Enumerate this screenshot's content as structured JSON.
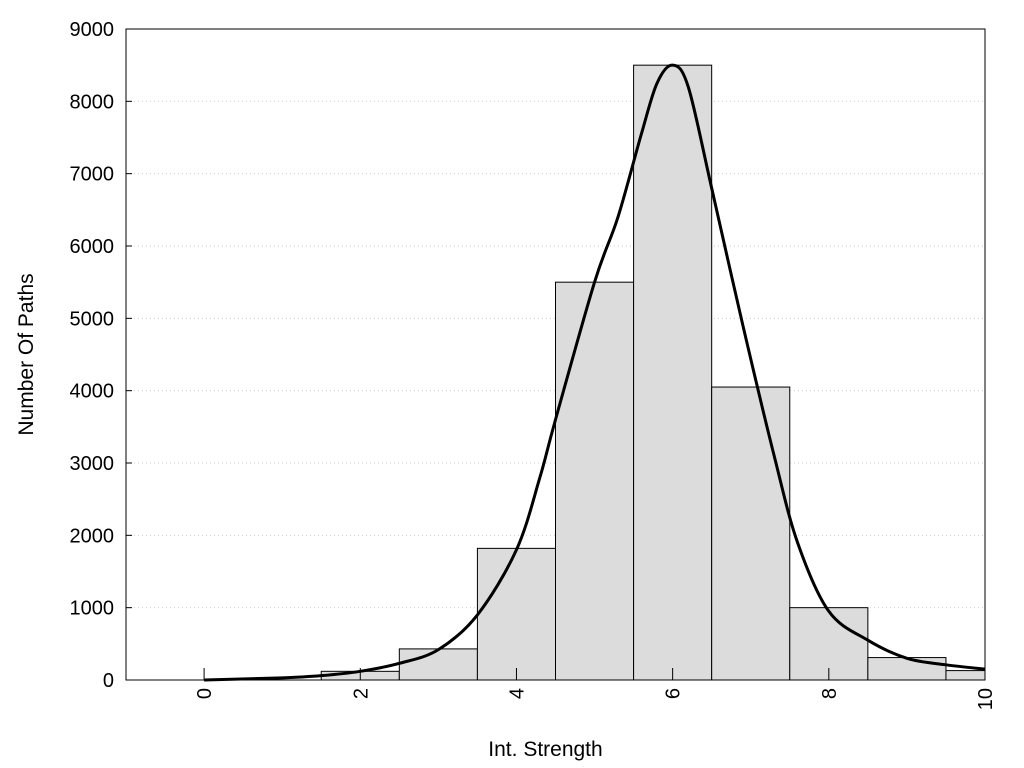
{
  "chart_data": {
    "type": "bar",
    "xlabel": "Int. Strength",
    "ylabel": "Number Of Paths",
    "xlim": [
      -1,
      10
    ],
    "ylim": [
      0,
      9000
    ],
    "x_ticks": [
      "0",
      "2",
      "4",
      "6",
      "8",
      "10"
    ],
    "y_ticks": [
      "0",
      "1000",
      "2000",
      "3000",
      "4000",
      "5000",
      "6000",
      "7000",
      "8000",
      "9000"
    ],
    "grid": "horizontal dotted",
    "bar_color": "#dcdcdc",
    "bars": [
      {
        "x": 0,
        "value": 0
      },
      {
        "x": 1,
        "value": 0
      },
      {
        "x": 2,
        "value": 120
      },
      {
        "x": 3,
        "value": 430
      },
      {
        "x": 4,
        "value": 1820
      },
      {
        "x": 5,
        "value": 5500
      },
      {
        "x": 6,
        "value": 8500
      },
      {
        "x": 7,
        "value": 4050
      },
      {
        "x": 8,
        "value": 1000
      },
      {
        "x": 9,
        "value": 310
      },
      {
        "x": 10,
        "value": 130
      }
    ],
    "curve": {
      "x": [
        0,
        1,
        1.5,
        2,
        2.5,
        3,
        3.5,
        4,
        4.3,
        4.5,
        5,
        5.3,
        5.6,
        5.8,
        6,
        6.2,
        6.5,
        6.9,
        7.3,
        7.6,
        8,
        8.5,
        9,
        9.5,
        10
      ],
      "y": [
        0,
        30,
        60,
        120,
        230,
        420,
        900,
        1800,
        2800,
        3600,
        5500,
        6400,
        7550,
        8250,
        8500,
        8200,
        6800,
        4900,
        3100,
        1900,
        950,
        550,
        300,
        210,
        150
      ]
    }
  }
}
